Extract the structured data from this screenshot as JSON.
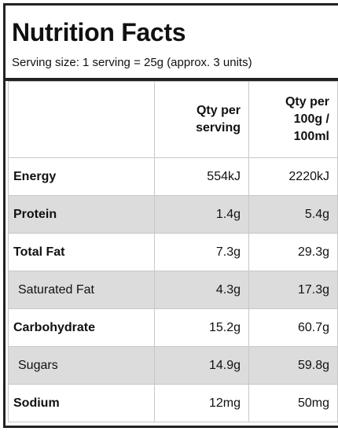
{
  "header": {
    "title": "Nutrition Facts",
    "serving_size": "Serving size: 1 serving = 25g (approx. 3 units)"
  },
  "table": {
    "columns": [
      "Qty per serving",
      "Qty per 100g / 100ml"
    ],
    "rows": [
      [
        "Energy",
        "554kJ",
        "2220kJ"
      ],
      [
        "Protein",
        "1.4g",
        "5.4g"
      ],
      [
        "Total Fat",
        "7.3g",
        "29.3g"
      ],
      [
        "Saturated Fat",
        "4.3g",
        "17.3g"
      ],
      [
        "Carbohydrate",
        "15.2g",
        "60.7g"
      ],
      [
        "Sugars",
        "14.9g",
        "59.8g"
      ],
      [
        "Sodium",
        "12mg",
        "50mg"
      ]
    ]
  }
}
